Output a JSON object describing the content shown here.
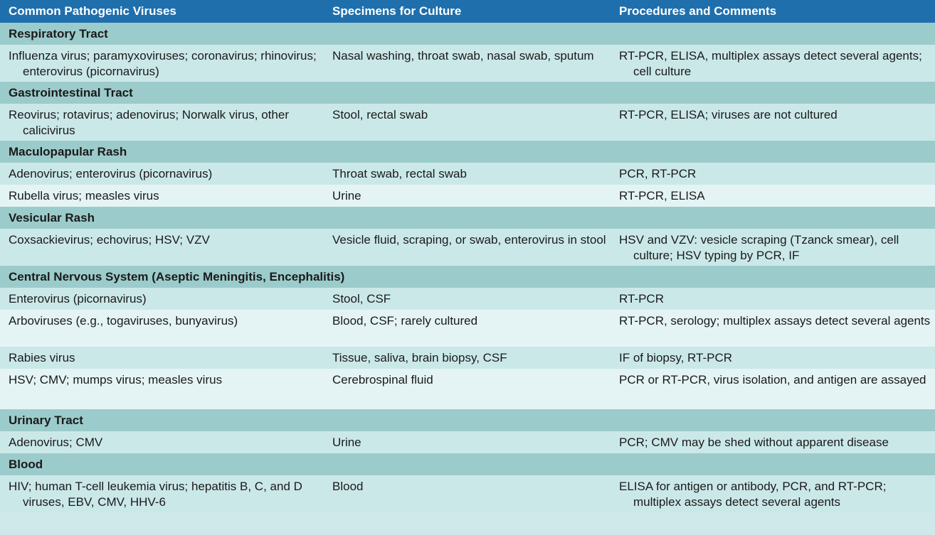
{
  "headers": [
    "Common Pathogenic Viruses",
    "Specimens for Culture",
    "Procedures and Comments"
  ],
  "sections": [
    {
      "title": "Respiratory Tract",
      "rows": [
        [
          "Influenza virus; paramyxoviruses; coronavirus; rhinovirus; enterovirus (picornavirus)",
          "Nasal washing, throat swab, nasal swab, sputum",
          "RT-PCR, ELISA, multiplex assays detect several agents; cell culture"
        ]
      ]
    },
    {
      "title": "Gastrointestinal Tract",
      "rows": [
        [
          "Reovirus; rotavirus; adenovirus; Norwalk virus, other calicivirus",
          "Stool, rectal swab",
          "RT-PCR, ELISA; viruses are not cultured"
        ]
      ]
    },
    {
      "title": "Maculopapular Rash",
      "rows": [
        [
          "Adenovirus; enterovirus (picornavirus)",
          "Throat swab, rectal swab",
          "PCR, RT-PCR"
        ],
        [
          "Rubella virus; measles virus",
          "Urine",
          "RT-PCR, ELISA"
        ]
      ]
    },
    {
      "title": "Vesicular Rash",
      "rows": [
        [
          "Coxsackievirus; echovirus; HSV; VZV",
          "Vesicle fluid, scraping, or swab, enterovirus in stool",
          "HSV and VZV: vesicle scraping (Tzanck smear), cell culture; HSV typing by PCR, IF"
        ]
      ]
    },
    {
      "title": "Central Nervous System (Aseptic Meningitis, Encephalitis)",
      "rows": [
        [
          "Enterovirus (picornavirus)",
          "Stool, CSF",
          "RT-PCR"
        ],
        [
          "Arboviruses (e.g., togaviruses, bunyavirus)",
          "Blood, CSF; rarely cultured",
          "RT-PCR, serology; multiplex assays detect several agents"
        ],
        [
          "Rabies virus",
          "Tissue, saliva, brain biopsy, CSF",
          "IF of biopsy, RT-PCR"
        ],
        [
          "HSV; CMV; mumps virus; measles virus",
          "Cerebrospinal fluid",
          "PCR or RT-PCR, virus isolation, and antigen are assayed"
        ]
      ]
    },
    {
      "title": "Urinary Tract",
      "rows": [
        [
          "Adenovirus; CMV",
          "Urine",
          "PCR; CMV may be shed without apparent disease"
        ]
      ]
    },
    {
      "title": "Blood",
      "rows": [
        [
          "HIV; human T-cell leukemia virus; hepatitis B, C, and D viruses, EBV, CMV, HHV-6",
          "Blood",
          "ELISA for antigen or antibody, PCR, and RT-PCR; multiplex assays detect several agents"
        ]
      ]
    }
  ]
}
